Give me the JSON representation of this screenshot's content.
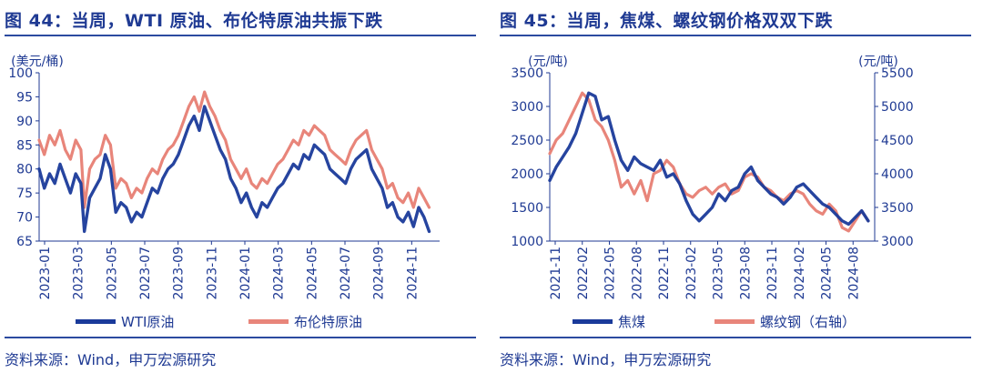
{
  "left": {
    "title": "图 44：当周，WTI 原油、布伦特原油共振下跌",
    "source": "资料来源：Wind，申万宏源研究",
    "chart_data": {
      "type": "line",
      "y_unit": "(美元/桶)",
      "ylim": [
        65,
        100
      ],
      "yticks": [
        65,
        70,
        75,
        80,
        85,
        90,
        95,
        100
      ],
      "x_ticks": [
        "2023-01",
        "2023-03",
        "2023-05",
        "2023-07",
        "2023-09",
        "2023-11",
        "2024-01",
        "2024-03",
        "2024-05",
        "2024-07",
        "2024-09",
        "2024-11"
      ],
      "x_range": [
        0,
        23
      ],
      "series": [
        {
          "name": "WTI原油",
          "color": "#1a3a9a",
          "x": [
            0,
            0.3,
            0.6,
            0.9,
            1.2,
            1.5,
            1.8,
            2.1,
            2.4,
            2.6,
            2.9,
            3.2,
            3.5,
            3.8,
            4.1,
            4.4,
            4.7,
            5.0,
            5.3,
            5.6,
            5.9,
            6.2,
            6.5,
            6.8,
            7.1,
            7.4,
            7.7,
            8.0,
            8.3,
            8.6,
            8.9,
            9.2,
            9.5,
            9.8,
            10.1,
            10.4,
            10.7,
            11.0,
            11.3,
            11.6,
            11.9,
            12.2,
            12.5,
            12.8,
            13.1,
            13.4,
            13.7,
            14.0,
            14.3,
            14.6,
            14.9,
            15.2,
            15.5,
            15.8,
            16.1,
            16.4,
            16.7,
            17.0,
            17.3,
            17.6,
            17.9,
            18.2,
            18.5,
            18.8,
            19.1,
            19.4,
            19.7,
            20.0,
            20.3,
            20.6,
            20.9,
            21.2,
            21.5,
            21.8,
            22.1,
            22.4
          ],
          "values": [
            80,
            76,
            79,
            77,
            81,
            78,
            75,
            79,
            77,
            67,
            74,
            76,
            78,
            83,
            80,
            71,
            73,
            72,
            69,
            71,
            70,
            73,
            76,
            75,
            78,
            80,
            81,
            83,
            86,
            89,
            91,
            88,
            93,
            90,
            87,
            84,
            82,
            78,
            76,
            73,
            75,
            72,
            70,
            73,
            72,
            74,
            76,
            77,
            79,
            81,
            80,
            83,
            82,
            85,
            84,
            83,
            80,
            79,
            78,
            77,
            80,
            82,
            83,
            84,
            80,
            78,
            76,
            72,
            73,
            70,
            69,
            71,
            68,
            72,
            70,
            67
          ]
        },
        {
          "name": "布伦特原油",
          "color": "#e8857a",
          "x": [
            0,
            0.3,
            0.6,
            0.9,
            1.2,
            1.5,
            1.8,
            2.1,
            2.4,
            2.6,
            2.9,
            3.2,
            3.5,
            3.8,
            4.1,
            4.4,
            4.7,
            5.0,
            5.3,
            5.6,
            5.9,
            6.2,
            6.5,
            6.8,
            7.1,
            7.4,
            7.7,
            8.0,
            8.3,
            8.6,
            8.9,
            9.2,
            9.5,
            9.8,
            10.1,
            10.4,
            10.7,
            11.0,
            11.3,
            11.6,
            11.9,
            12.2,
            12.5,
            12.8,
            13.1,
            13.4,
            13.7,
            14.0,
            14.3,
            14.6,
            14.9,
            15.2,
            15.5,
            15.8,
            16.1,
            16.4,
            16.7,
            17.0,
            17.3,
            17.6,
            17.9,
            18.2,
            18.5,
            18.8,
            19.1,
            19.4,
            19.7,
            20.0,
            20.3,
            20.6,
            20.9,
            21.2,
            21.5,
            21.8,
            22.1,
            22.4
          ],
          "values": [
            86,
            83,
            87,
            85,
            88,
            84,
            82,
            86,
            84,
            72,
            80,
            82,
            83,
            87,
            85,
            76,
            78,
            77,
            74,
            76,
            75,
            78,
            80,
            79,
            82,
            84,
            85,
            87,
            90,
            93,
            95,
            92,
            96,
            93,
            91,
            88,
            86,
            82,
            80,
            78,
            80,
            77,
            76,
            78,
            77,
            79,
            81,
            82,
            84,
            86,
            85,
            88,
            87,
            89,
            88,
            87,
            84,
            83,
            82,
            81,
            84,
            86,
            87,
            88,
            84,
            82,
            80,
            76,
            77,
            74,
            73,
            75,
            72,
            76,
            74,
            72
          ]
        }
      ]
    },
    "legend": [
      "WTI原油",
      "布伦特原油"
    ]
  },
  "right": {
    "title": "图 45：当周，焦煤、螺纹钢价格双双下跌",
    "source": "资料来源：Wind，申万宏源研究",
    "chart_data": {
      "type": "line",
      "y_left_unit": "(元/吨)",
      "y_right_unit": "(元/吨)",
      "ylim_left": [
        1000,
        3500
      ],
      "yticks_left": [
        1000,
        1500,
        2000,
        2500,
        3000,
        3500
      ],
      "ylim_right": [
        3000,
        5500
      ],
      "yticks_right": [
        3000,
        3500,
        4000,
        4500,
        5000,
        5500
      ],
      "x_ticks": [
        "2021-11",
        "2022-02",
        "2022-05",
        "2022-08",
        "2022-11",
        "2023-02",
        "2023-05",
        "2023-08",
        "2023-11",
        "2024-02",
        "2024-05",
        "2024-08"
      ],
      "x_range": [
        0,
        35
      ],
      "series": [
        {
          "name": "焦煤",
          "axis": "left",
          "color": "#1a3a9a",
          "x": [
            0,
            0.7,
            1.4,
            2.1,
            2.8,
            3.5,
            4.2,
            4.9,
            5.6,
            6.3,
            7.0,
            7.7,
            8.4,
            9.1,
            9.8,
            10.5,
            11.2,
            11.9,
            12.6,
            13.3,
            14.0,
            14.7,
            15.4,
            16.1,
            16.8,
            17.5,
            18.2,
            18.9,
            19.6,
            20.3,
            21.0,
            21.7,
            22.4,
            23.1,
            23.8,
            24.5,
            25.2,
            25.9,
            26.6,
            27.3,
            28.0,
            28.7,
            29.4,
            30.1,
            30.8,
            31.5,
            32.2,
            32.9,
            33.6,
            34.3
          ],
          "values": [
            1900,
            2100,
            2250,
            2400,
            2600,
            2900,
            3200,
            3150,
            2800,
            2850,
            2500,
            2200,
            2050,
            2250,
            2150,
            2100,
            2050,
            2200,
            1950,
            2000,
            1850,
            1600,
            1400,
            1300,
            1400,
            1500,
            1700,
            1600,
            1750,
            1800,
            2000,
            2100,
            1900,
            1800,
            1700,
            1650,
            1550,
            1650,
            1800,
            1850,
            1750,
            1650,
            1550,
            1500,
            1400,
            1300,
            1250,
            1350,
            1450,
            1300
          ]
        },
        {
          "name": "螺纹钢（右轴）",
          "axis": "right",
          "color": "#e8857a",
          "x": [
            0,
            0.7,
            1.4,
            2.1,
            2.8,
            3.5,
            4.2,
            4.9,
            5.6,
            6.3,
            7.0,
            7.7,
            8.4,
            9.1,
            9.8,
            10.5,
            11.2,
            11.9,
            12.6,
            13.3,
            14.0,
            14.7,
            15.4,
            16.1,
            16.8,
            17.5,
            18.2,
            18.9,
            19.6,
            20.3,
            21.0,
            21.7,
            22.4,
            23.1,
            23.8,
            24.5,
            25.2,
            25.9,
            26.6,
            27.3,
            28.0,
            28.7,
            29.4,
            30.1,
            30.8,
            31.5,
            32.2,
            32.9,
            33.6,
            34.3
          ],
          "values": [
            4300,
            4500,
            4600,
            4800,
            5000,
            5200,
            5100,
            4800,
            4700,
            4500,
            4200,
            3800,
            3900,
            3700,
            3900,
            3600,
            4000,
            4050,
            4200,
            4100,
            3850,
            3700,
            3650,
            3750,
            3800,
            3700,
            3800,
            3850,
            3700,
            3750,
            3950,
            4000,
            3950,
            3800,
            3750,
            3650,
            3600,
            3700,
            3750,
            3700,
            3550,
            3450,
            3400,
            3550,
            3450,
            3200,
            3150,
            3300,
            3450,
            3300
          ]
        }
      ]
    },
    "legend": [
      "焦煤",
      "螺纹钢（右轴）"
    ]
  }
}
